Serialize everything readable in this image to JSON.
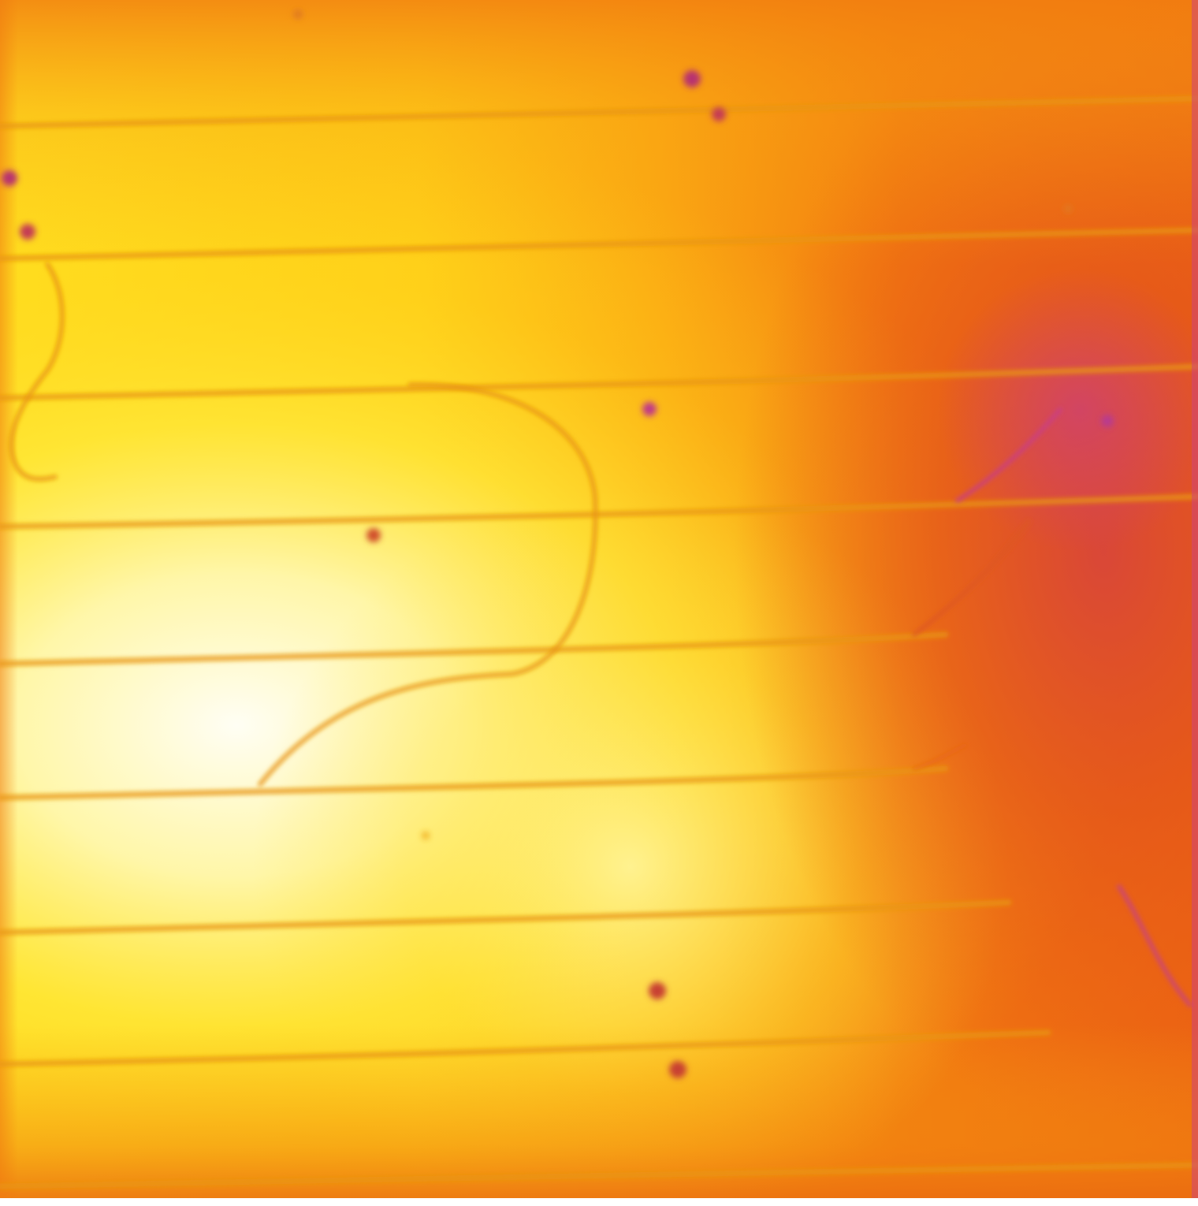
{
  "image": {
    "kind": "thermal/luminescence false-color photograph",
    "colormap": [
      "#fffdf0",
      "#fff060",
      "#ffd21a",
      "#ffa60f",
      "#f57b0c",
      "#e85215",
      "#d94a35",
      "#c83a8a"
    ],
    "colors": {
      "hot_core": "#fffef2",
      "warm": "#ffdc1e",
      "mid": "#fbb012",
      "cool": "#ef6f10",
      "coldest": "#d23f4e",
      "streak_line": "#e89a0c",
      "defect_spot": "#c43a55",
      "border_strip": "#c84090"
    },
    "features": {
      "horizontal_streak_count": 9,
      "curved_streak_count": 2,
      "defect_spot_count": 12,
      "hot_region": "left-center",
      "cold_region": "right"
    }
  }
}
